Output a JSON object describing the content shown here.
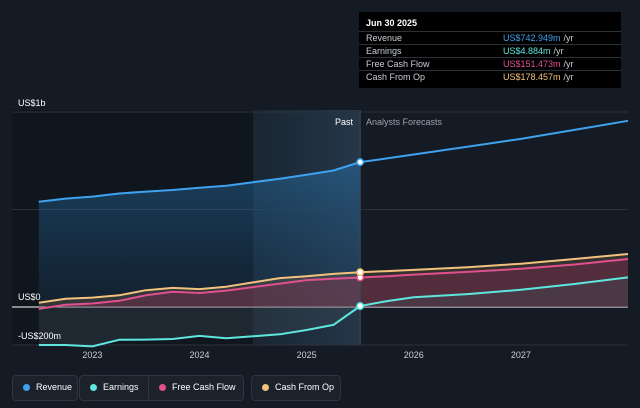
{
  "chart_data": {
    "type": "line",
    "y_unit_labels": {
      "top": "US$1b",
      "zero": "US$0",
      "bottom": "-US$200m"
    },
    "ylim": [
      -200,
      1000
    ],
    "xlim": [
      2022.25,
      2028.0
    ],
    "x_ticks": [
      {
        "value": 2023,
        "label": "2023"
      },
      {
        "value": 2024,
        "label": "2024"
      },
      {
        "value": 2025,
        "label": "2025"
      },
      {
        "value": 2026,
        "label": "2026"
      },
      {
        "value": 2027,
        "label": "2027"
      }
    ],
    "past_label": "Past",
    "forecast_label": "Analysts Forecasts",
    "divider_x": 2025.5,
    "highlight_start_x": 2024.5,
    "series": [
      {
        "name": "Revenue",
        "color": "#3ea2ee",
        "x": [
          2022.5,
          2022.75,
          2023.0,
          2023.25,
          2023.5,
          2023.75,
          2024.0,
          2024.25,
          2024.5,
          2024.75,
          2025.0,
          2025.25,
          2025.5,
          2025.75,
          2026.0,
          2026.5,
          2027.0,
          2027.5,
          2028.0
        ],
        "y": [
          540,
          556,
          566,
          582,
          592,
          600,
          612,
          622,
          640,
          658,
          678,
          700,
          742.949,
          762,
          782,
          822,
          862,
          908,
          955
        ]
      },
      {
        "name": "Earnings",
        "color": "#5ee6df",
        "x": [
          2022.5,
          2022.75,
          2023.0,
          2023.25,
          2023.5,
          2023.75,
          2024.0,
          2024.25,
          2024.5,
          2024.75,
          2025.0,
          2025.25,
          2025.5,
          2025.75,
          2026.0,
          2026.5,
          2027.0,
          2027.5,
          2028.0
        ],
        "y": [
          -195,
          -195,
          -202,
          -168,
          -167,
          -164,
          -148,
          -160,
          -150,
          -140,
          -118,
          -92,
          4.884,
          30,
          50,
          66,
          88,
          118,
          152
        ]
      },
      {
        "name": "Free Cash Flow",
        "color": "#e0508f",
        "x": [
          2022.5,
          2022.75,
          2023.0,
          2023.25,
          2023.5,
          2023.75,
          2024.0,
          2024.25,
          2024.5,
          2024.75,
          2025.0,
          2025.25,
          2025.5,
          2025.75,
          2026.0,
          2026.5,
          2027.0,
          2027.5,
          2028.0
        ],
        "y": [
          -10,
          12,
          18,
          32,
          60,
          78,
          72,
          84,
          102,
          120,
          138,
          145,
          151.473,
          158,
          166,
          180,
          196,
          218,
          246
        ]
      },
      {
        "name": "Cash From Op",
        "color": "#f2c27d",
        "x": [
          2022.5,
          2022.75,
          2023.0,
          2023.25,
          2023.5,
          2023.75,
          2024.0,
          2024.25,
          2024.5,
          2024.75,
          2025.0,
          2025.25,
          2025.5,
          2025.75,
          2026.0,
          2026.5,
          2027.0,
          2027.5,
          2028.0
        ],
        "y": [
          22,
          42,
          48,
          60,
          86,
          98,
          92,
          104,
          126,
          148,
          158,
          170,
          178.457,
          184,
          190,
          204,
          222,
          246,
          272
        ]
      }
    ]
  },
  "tooltip": {
    "date": "Jun 30 2025",
    "unit": "/yr",
    "rows": [
      {
        "label": "Revenue",
        "value": "US$742.949m",
        "color": "#3ea2ee"
      },
      {
        "label": "Earnings",
        "value": "US$4.884m",
        "color": "#5ee6df"
      },
      {
        "label": "Free Cash Flow",
        "value": "US$151.473m",
        "color": "#e0508f"
      },
      {
        "label": "Cash From Op",
        "value": "US$178.457m",
        "color": "#f2c27d"
      }
    ]
  },
  "legend": [
    {
      "label": "Revenue",
      "color": "#3ea2ee"
    },
    {
      "label": "Earnings",
      "color": "#5ee6df"
    },
    {
      "label": "Free Cash Flow",
      "color": "#e0508f"
    },
    {
      "label": "Cash From Op",
      "color": "#f2c27d"
    }
  ]
}
